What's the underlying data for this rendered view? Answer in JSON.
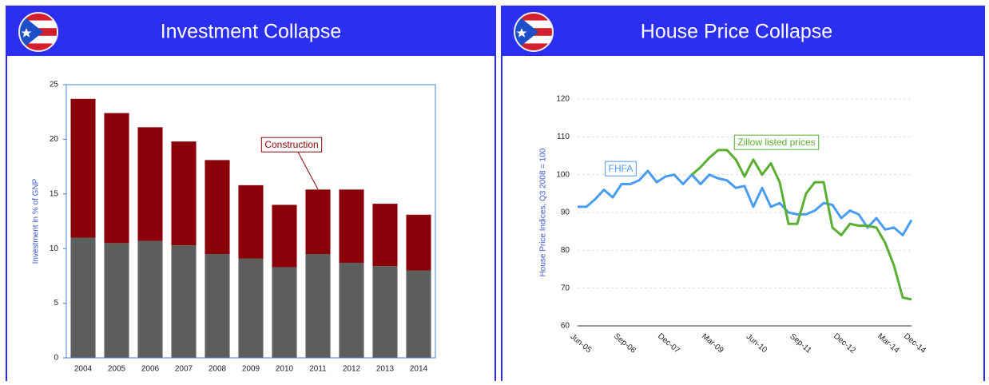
{
  "chart_data": [
    {
      "type": "bar",
      "stacked": true,
      "title": "Investment Collapse",
      "y_label": "Investment in % of GNP",
      "categories": [
        "2004",
        "2005",
        "2006",
        "2007",
        "2008",
        "2009",
        "2010",
        "2011",
        "2012",
        "2013",
        "2014"
      ],
      "series": [
        {
          "color": "#5d5f5d",
          "values": [
            11.0,
            10.5,
            10.7,
            10.3,
            9.5,
            9.1,
            8.3,
            9.5,
            8.7,
            8.4,
            8.0
          ]
        },
        {
          "name": "Construction",
          "color": "#8a0008",
          "values": [
            12.7,
            11.9,
            10.4,
            9.5,
            8.6,
            6.7,
            5.7,
            5.9,
            6.7,
            5.7,
            5.1
          ]
        }
      ],
      "ylim": [
        0,
        25
      ],
      "yticks": [
        0,
        5,
        10,
        15,
        20,
        25
      ]
    },
    {
      "type": "line",
      "title": "House Price Collapse",
      "y_label": "House Price Indices, Q3 2008 = 100",
      "categories": [
        "Jun-05",
        null,
        null,
        null,
        null,
        "Sep-06",
        null,
        null,
        null,
        null,
        "Dec-07",
        null,
        null,
        null,
        null,
        "Mar-09",
        null,
        null,
        null,
        null,
        "Jun-10",
        null,
        null,
        null,
        null,
        "Sep-11",
        null,
        null,
        null,
        null,
        "Dec-12",
        null,
        null,
        null,
        null,
        "Mar-14",
        null,
        null,
        "Dec-14"
      ],
      "series": [
        {
          "name": "FHFA",
          "color": "#4a9cf0",
          "values": [
            91.5,
            91.5,
            93.5,
            96,
            94,
            97.5,
            97.5,
            98.5,
            101,
            98,
            99.5,
            100,
            97.5,
            100,
            97.5,
            100,
            99,
            98.5,
            96.5,
            97,
            91.5,
            96.5,
            91.5,
            92.5,
            90,
            89.5,
            89.5,
            90.5,
            92.5,
            92,
            88.5,
            90.5,
            89.5,
            86,
            88.5,
            85.5,
            86,
            84,
            88
          ]
        },
        {
          "name": "Zillow listed prices",
          "color": "#5aae32",
          "values": [
            null,
            null,
            null,
            null,
            null,
            null,
            null,
            null,
            null,
            null,
            null,
            null,
            null,
            100,
            102,
            104.5,
            106.5,
            106.5,
            104,
            99.5,
            104,
            100,
            103,
            98,
            87,
            87,
            95,
            98,
            98,
            86,
            84,
            87,
            86.5,
            86.5,
            86,
            82,
            76,
            67.5,
            67
          ]
        }
      ],
      "ylim": [
        60,
        120
      ],
      "yticks": [
        60,
        70,
        80,
        90,
        100,
        110,
        120
      ],
      "grid": true
    }
  ]
}
